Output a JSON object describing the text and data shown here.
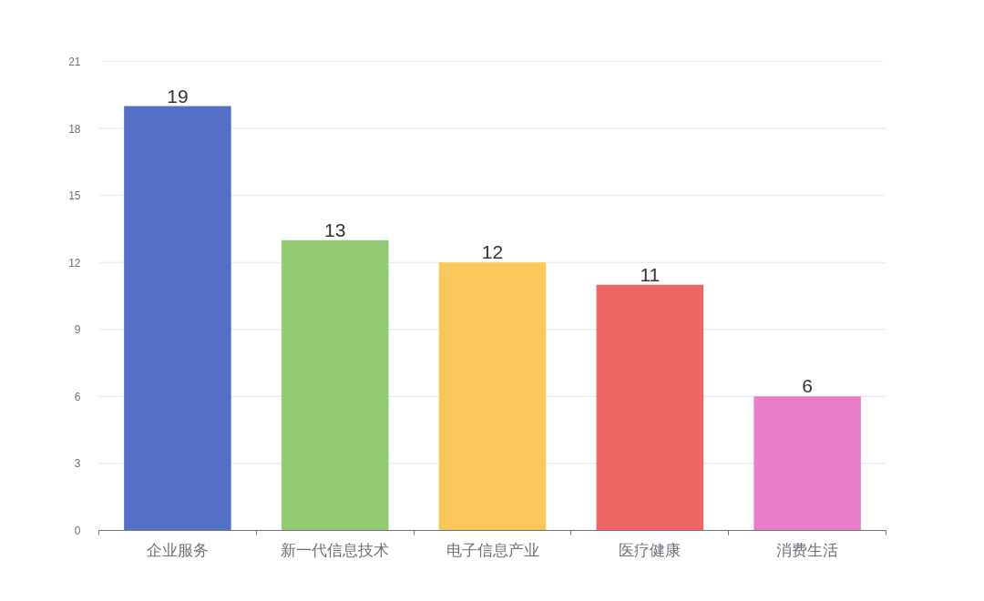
{
  "chart_data": {
    "type": "bar",
    "categories": [
      "企业服务",
      "新一代信息技术",
      "电子信息产业",
      "医疗健康",
      "消费生活"
    ],
    "values": [
      19,
      13,
      12,
      11,
      6
    ],
    "colors": [
      "#5470c6",
      "#91cc75",
      "#fac858",
      "#ee6666",
      "#ea7ccc"
    ],
    "ylim": [
      0,
      21
    ],
    "yticks": [
      0,
      3,
      6,
      9,
      12,
      15,
      18,
      21
    ],
    "grid": "y",
    "data_labels": true
  }
}
